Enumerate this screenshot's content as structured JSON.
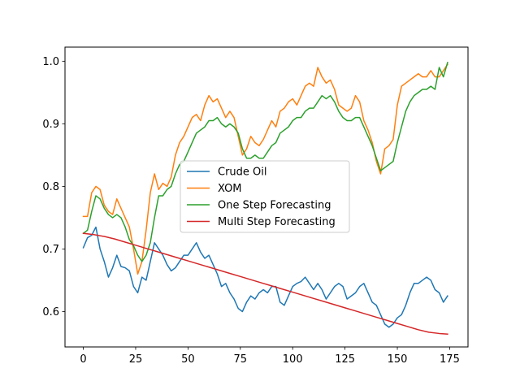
{
  "chart_data": {
    "type": "line",
    "title": "",
    "xlabel": "",
    "ylabel": "",
    "xlim": [
      -8.75,
      183.75
    ],
    "ylim": [
      0.5435,
      1.0225
    ],
    "xticks": [
      0,
      25,
      50,
      75,
      100,
      125,
      150,
      175
    ],
    "yticks": [
      0.6,
      0.7,
      0.8,
      0.9,
      1.0
    ],
    "xtick_labels": [
      "0",
      "25",
      "50",
      "75",
      "100",
      "125",
      "150",
      "175"
    ],
    "ytick_labels": [
      "0.6",
      "0.7",
      "0.8",
      "0.9",
      "1.0"
    ],
    "grid": false,
    "legend_position": "center",
    "series": [
      {
        "name": "Crude Oil",
        "color": "#1f77b4",
        "x": [
          0,
          2,
          4,
          6,
          8,
          10,
          12,
          14,
          16,
          18,
          20,
          22,
          24,
          26,
          28,
          30,
          32,
          34,
          36,
          38,
          40,
          42,
          44,
          46,
          48,
          50,
          52,
          54,
          56,
          58,
          60,
          62,
          64,
          66,
          68,
          70,
          72,
          74,
          76,
          78,
          80,
          82,
          84,
          86,
          88,
          90,
          92,
          94,
          96,
          98,
          100,
          102,
          104,
          106,
          108,
          110,
          112,
          114,
          116,
          118,
          120,
          122,
          124,
          126,
          128,
          130,
          132,
          134,
          136,
          138,
          140,
          142,
          144,
          146,
          148,
          150,
          152,
          154,
          156,
          158,
          160,
          162,
          164,
          166,
          168,
          170,
          172,
          174
        ],
        "y": [
          0.702,
          0.718,
          0.722,
          0.735,
          0.7,
          0.68,
          0.655,
          0.67,
          0.69,
          0.672,
          0.67,
          0.665,
          0.64,
          0.63,
          0.655,
          0.65,
          0.68,
          0.71,
          0.7,
          0.69,
          0.675,
          0.665,
          0.67,
          0.68,
          0.69,
          0.69,
          0.7,
          0.71,
          0.695,
          0.685,
          0.69,
          0.675,
          0.66,
          0.64,
          0.645,
          0.63,
          0.62,
          0.605,
          0.6,
          0.615,
          0.625,
          0.62,
          0.63,
          0.635,
          0.63,
          0.64,
          0.64,
          0.615,
          0.61,
          0.625,
          0.64,
          0.645,
          0.648,
          0.655,
          0.645,
          0.635,
          0.645,
          0.635,
          0.62,
          0.63,
          0.64,
          0.645,
          0.64,
          0.62,
          0.625,
          0.63,
          0.64,
          0.645,
          0.63,
          0.615,
          0.61,
          0.595,
          0.58,
          0.575,
          0.58,
          0.59,
          0.595,
          0.61,
          0.63,
          0.645,
          0.645,
          0.65,
          0.655,
          0.65,
          0.635,
          0.63,
          0.615,
          0.625
        ]
      },
      {
        "name": "XOM",
        "color": "#ff7f0e",
        "x": [
          0,
          2,
          4,
          6,
          8,
          10,
          12,
          14,
          16,
          18,
          20,
          22,
          24,
          26,
          28,
          30,
          32,
          34,
          36,
          38,
          40,
          42,
          44,
          46,
          48,
          50,
          52,
          54,
          56,
          58,
          60,
          62,
          64,
          66,
          68,
          70,
          72,
          74,
          76,
          78,
          80,
          82,
          84,
          86,
          88,
          90,
          92,
          94,
          96,
          98,
          100,
          102,
          104,
          106,
          108,
          110,
          112,
          114,
          116,
          118,
          120,
          122,
          124,
          126,
          128,
          130,
          132,
          134,
          136,
          138,
          140,
          142,
          144,
          146,
          148,
          150,
          152,
          154,
          156,
          158,
          160,
          162,
          164,
          166,
          168,
          170,
          172,
          174
        ],
        "y": [
          0.752,
          0.752,
          0.79,
          0.8,
          0.795,
          0.77,
          0.76,
          0.755,
          0.78,
          0.765,
          0.75,
          0.735,
          0.7,
          0.66,
          0.68,
          0.73,
          0.79,
          0.82,
          0.795,
          0.805,
          0.8,
          0.815,
          0.85,
          0.87,
          0.88,
          0.895,
          0.91,
          0.915,
          0.905,
          0.93,
          0.945,
          0.935,
          0.94,
          0.925,
          0.91,
          0.92,
          0.91,
          0.88,
          0.85,
          0.86,
          0.88,
          0.87,
          0.865,
          0.875,
          0.89,
          0.905,
          0.895,
          0.92,
          0.925,
          0.935,
          0.94,
          0.93,
          0.945,
          0.96,
          0.965,
          0.96,
          0.99,
          0.975,
          0.965,
          0.97,
          0.955,
          0.93,
          0.925,
          0.92,
          0.925,
          0.945,
          0.935,
          0.905,
          0.89,
          0.87,
          0.84,
          0.82,
          0.86,
          0.865,
          0.875,
          0.93,
          0.96,
          0.965,
          0.97,
          0.975,
          0.98,
          0.975,
          0.975,
          0.985,
          0.975,
          0.975,
          0.985,
          0.995
        ]
      },
      {
        "name": "One Step Forecasting",
        "color": "#2ca02c",
        "x": [
          0,
          2,
          4,
          6,
          8,
          10,
          12,
          14,
          16,
          18,
          20,
          22,
          24,
          26,
          28,
          30,
          32,
          34,
          36,
          38,
          40,
          42,
          44,
          46,
          48,
          50,
          52,
          54,
          56,
          58,
          60,
          62,
          64,
          66,
          68,
          70,
          72,
          74,
          76,
          78,
          80,
          82,
          84,
          86,
          88,
          90,
          92,
          94,
          96,
          98,
          100,
          102,
          104,
          106,
          108,
          110,
          112,
          114,
          116,
          118,
          120,
          122,
          124,
          126,
          128,
          130,
          132,
          134,
          136,
          138,
          140,
          142,
          144,
          146,
          148,
          150,
          152,
          154,
          156,
          158,
          160,
          162,
          164,
          166,
          168,
          170,
          172,
          174
        ],
        "y": [
          0.725,
          0.73,
          0.76,
          0.785,
          0.78,
          0.765,
          0.755,
          0.75,
          0.755,
          0.75,
          0.735,
          0.715,
          0.705,
          0.69,
          0.68,
          0.69,
          0.71,
          0.75,
          0.785,
          0.785,
          0.795,
          0.8,
          0.82,
          0.835,
          0.84,
          0.855,
          0.87,
          0.885,
          0.89,
          0.895,
          0.905,
          0.905,
          0.91,
          0.9,
          0.895,
          0.9,
          0.895,
          0.885,
          0.86,
          0.845,
          0.845,
          0.85,
          0.845,
          0.845,
          0.855,
          0.865,
          0.87,
          0.885,
          0.89,
          0.895,
          0.905,
          0.91,
          0.91,
          0.92,
          0.925,
          0.925,
          0.935,
          0.945,
          0.94,
          0.945,
          0.935,
          0.92,
          0.91,
          0.905,
          0.905,
          0.91,
          0.91,
          0.895,
          0.88,
          0.865,
          0.845,
          0.825,
          0.83,
          0.835,
          0.84,
          0.87,
          0.895,
          0.92,
          0.935,
          0.945,
          0.95,
          0.955,
          0.955,
          0.96,
          0.955,
          0.99,
          0.975,
          0.998
        ]
      },
      {
        "name": "Multi Step Forecasting",
        "color": "#d62728",
        "x": [
          0,
          5,
          10,
          15,
          20,
          25,
          30,
          35,
          40,
          45,
          50,
          55,
          60,
          65,
          70,
          75,
          80,
          85,
          90,
          95,
          100,
          105,
          110,
          115,
          120,
          125,
          130,
          135,
          140,
          145,
          150,
          155,
          160,
          165,
          170,
          174
        ],
        "y": [
          0.725,
          0.723,
          0.72,
          0.716,
          0.711,
          0.706,
          0.701,
          0.696,
          0.691,
          0.686,
          0.681,
          0.676,
          0.671,
          0.666,
          0.661,
          0.656,
          0.651,
          0.646,
          0.641,
          0.636,
          0.631,
          0.626,
          0.621,
          0.616,
          0.611,
          0.606,
          0.601,
          0.596,
          0.591,
          0.586,
          0.581,
          0.576,
          0.571,
          0.567,
          0.565,
          0.564
        ]
      }
    ]
  }
}
